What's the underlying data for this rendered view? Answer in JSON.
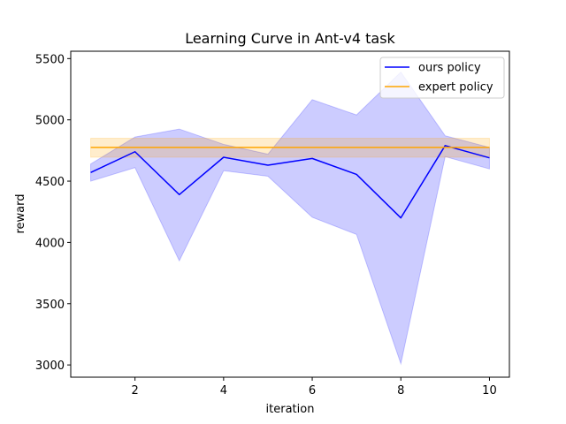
{
  "chart_data": {
    "type": "line",
    "title": "Learning Curve in Ant-v4 task",
    "xlabel": "iteration",
    "ylabel": "reward",
    "xlim": [
      0.55,
      10.45
    ],
    "ylim": [
      2900,
      5560
    ],
    "xticks": [
      2,
      4,
      6,
      8,
      10
    ],
    "yticks": [
      3000,
      3500,
      4000,
      4500,
      5000,
      5500
    ],
    "grid": false,
    "legend_position": "top-right",
    "x": [
      1,
      2,
      3,
      4,
      5,
      6,
      7,
      8,
      9,
      10
    ],
    "series": [
      {
        "name": "ours policy",
        "color": "#0000ff",
        "values": [
          4570,
          4740,
          4390,
          4695,
          4630,
          4685,
          4555,
          4200,
          4790,
          4690
        ],
        "lower": [
          4500,
          4610,
          3850,
          4585,
          4540,
          4205,
          4065,
          3010,
          4700,
          4600
        ],
        "upper": [
          4640,
          4860,
          4925,
          4800,
          4720,
          5165,
          5040,
          5390,
          4870,
          4775
        ],
        "band_color": "#0000ff"
      },
      {
        "name": "expert policy",
        "color": "#ffa500",
        "values": [
          4775,
          4775,
          4775,
          4775,
          4775,
          4775,
          4775,
          4775,
          4775,
          4775
        ],
        "lower": [
          4695,
          4695,
          4695,
          4695,
          4695,
          4695,
          4695,
          4695,
          4695,
          4695
        ],
        "upper": [
          4850,
          4850,
          4850,
          4850,
          4850,
          4850,
          4850,
          4850,
          4850,
          4850
        ],
        "band_color": "#ffa500"
      }
    ]
  }
}
